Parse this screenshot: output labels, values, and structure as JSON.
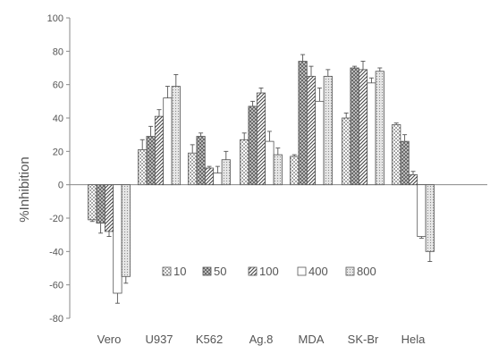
{
  "chart_data": {
    "type": "bar",
    "title": "",
    "xlabel": "",
    "ylabel": "%Inhibition",
    "ylim": [
      -80,
      100
    ],
    "yticks": [
      100,
      80,
      60,
      40,
      20,
      0,
      -20,
      -40,
      -60,
      -80
    ],
    "grid": false,
    "legend_position": "inside-bottom-center",
    "categories": [
      "Vero",
      "U937",
      "K562",
      "Ag.8",
      "MDA",
      "SK-Br",
      "Hela"
    ],
    "series": [
      {
        "name": "10",
        "pattern": "dots",
        "values": [
          -21,
          21,
          19,
          27,
          17,
          40,
          36
        ],
        "errors": [
          1,
          6,
          5,
          4,
          1,
          3,
          1
        ]
      },
      {
        "name": "50",
        "pattern": "crosshatch",
        "values": [
          -23,
          29,
          29,
          47,
          74,
          70,
          26
        ],
        "errors": [
          6,
          6,
          2,
          3,
          4,
          1,
          4
        ]
      },
      {
        "name": "100",
        "pattern": "diagonal",
        "values": [
          -28,
          41,
          10,
          55,
          65,
          69,
          6
        ],
        "errors": [
          3,
          4,
          1,
          3,
          6,
          5,
          2
        ]
      },
      {
        "name": "400",
        "pattern": "white",
        "values": [
          -65,
          52,
          7,
          26,
          50,
          61,
          -31
        ],
        "errors": [
          6,
          7,
          4,
          6,
          8,
          3,
          1
        ]
      },
      {
        "name": "800",
        "pattern": "stipple",
        "values": [
          -55,
          59,
          15,
          18,
          65,
          68,
          -40
        ],
        "errors": [
          4,
          7,
          5,
          4,
          4,
          2,
          6
        ]
      }
    ]
  }
}
